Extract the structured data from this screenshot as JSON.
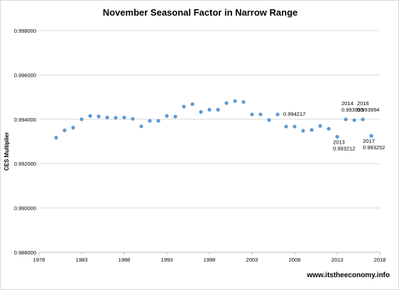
{
  "chart_data": {
    "type": "scatter",
    "title": "November Seasonal Factor in Narrow Range",
    "xlabel": "",
    "ylabel": "CES Multiplier",
    "xlim": [
      1978,
      2018
    ],
    "ylim": [
      0.988,
      0.998
    ],
    "xticks": [
      "1978",
      "1983",
      "1988",
      "1993",
      "1998",
      "2003",
      "2008",
      "2013",
      "2018"
    ],
    "yticks": [
      "0.988000",
      "0.990000",
      "0.992000",
      "0.994000",
      "0.996000",
      "0.998000"
    ],
    "grid": true,
    "marker_color": "#5b9bd5",
    "series": [
      {
        "x": [
          1980,
          1981,
          1982,
          1983,
          1984,
          1985,
          1986,
          1987,
          1988,
          1989,
          1990,
          1991,
          1992,
          1993,
          1994,
          1995,
          1996,
          1997,
          1998,
          1999,
          2000,
          2001,
          2002,
          2003,
          2004,
          2005,
          2006,
          2007,
          2008,
          2009,
          2010,
          2011,
          2012,
          2013,
          2014,
          2015,
          2016,
          2017
        ],
        "y": [
          0.99317,
          0.9935,
          0.99362,
          0.994,
          0.99415,
          0.99413,
          0.99408,
          0.99407,
          0.99408,
          0.99402,
          0.99368,
          0.99393,
          0.99393,
          0.99415,
          0.99412,
          0.99457,
          0.99468,
          0.99433,
          0.99443,
          0.99443,
          0.99473,
          0.99482,
          0.99478,
          0.99422,
          0.99422,
          0.99397,
          0.994217,
          0.99367,
          0.99367,
          0.99348,
          0.99352,
          0.9937,
          0.99357,
          0.993212,
          0.993995,
          0.99396,
          0.993994,
          0.993252
        ]
      }
    ],
    "annotations": [
      {
        "x": 2006,
        "y": 0.994217,
        "text": [
          "0.994217"
        ]
      },
      {
        "x": 2014,
        "y": 0.993995,
        "text": [
          "2014",
          "0.993995"
        ]
      },
      {
        "x": 2016,
        "y": 0.993994,
        "text": [
          "2016",
          "0.993994"
        ]
      },
      {
        "x": 2013,
        "y": 0.993212,
        "text": [
          "2013",
          "0.993212"
        ]
      },
      {
        "x": 2017,
        "y": 0.993252,
        "text": [
          "2017",
          "0.993252"
        ]
      }
    ]
  },
  "footer": {
    "watermark": "www.itstheeconomy.info"
  }
}
